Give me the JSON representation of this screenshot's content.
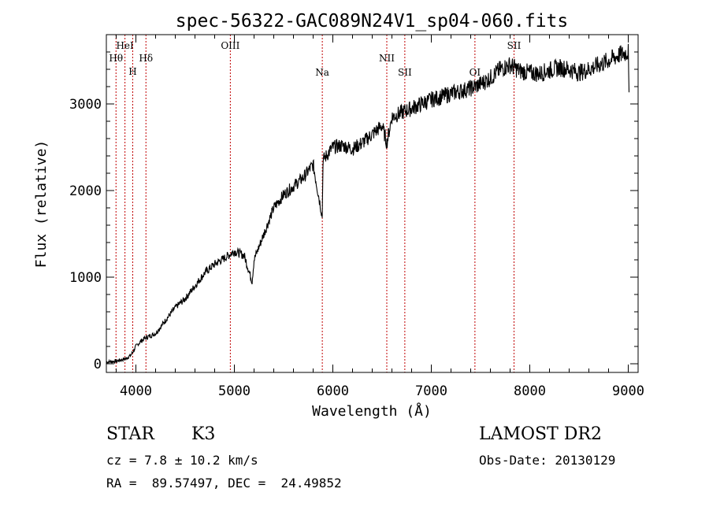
{
  "chart_data": {
    "type": "line",
    "title": "spec-56322-GAC089N24V1_sp04-060.fits",
    "xlabel": "Wavelength (Å)",
    "ylabel": "Flux (relative)",
    "xlim": [
      3700,
      9100
    ],
    "ylim": [
      -100,
      3800
    ],
    "x_ticks": [
      4000,
      5000,
      6000,
      7000,
      8000,
      9000
    ],
    "y_ticks": [
      0,
      1000,
      2000,
      3000
    ],
    "grid": false,
    "legend": "none",
    "line_color": "#000000",
    "marker_color": "#c00000",
    "spectral_lines": [
      {
        "label": "Hθ",
        "wavelength": 3798
      },
      {
        "label": "HeI",
        "wavelength": 3889
      },
      {
        "label": "H",
        "wavelength": 3968
      },
      {
        "label": "Hδ",
        "wavelength": 4102
      },
      {
        "label": "OIII",
        "wavelength": 4959
      },
      {
        "label": "Na",
        "wavelength": 5893
      },
      {
        "label": "NII",
        "wavelength": 6548
      },
      {
        "label": "SII",
        "wavelength": 6731
      },
      {
        "label": "OI",
        "wavelength": 7443
      },
      {
        "label": "SII",
        "wavelength": 7840
      }
    ],
    "spectrum_anchors": {
      "x": [
        3700,
        3800,
        3900,
        3950,
        4000,
        4050,
        4100,
        4200,
        4300,
        4400,
        4500,
        4600,
        4700,
        4800,
        4900,
        5000,
        5100,
        5180,
        5200,
        5300,
        5400,
        5500,
        5600,
        5700,
        5800,
        5893,
        5900,
        6000,
        6100,
        6200,
        6300,
        6400,
        6500,
        6548,
        6600,
        6700,
        6800,
        6900,
        7000,
        7100,
        7200,
        7300,
        7400,
        7500,
        7600,
        7700,
        7800,
        7900,
        8000,
        8100,
        8200,
        8300,
        8400,
        8500,
        8600,
        8700,
        8800,
        8900,
        9000,
        9010
      ],
      "y": [
        20,
        30,
        60,
        100,
        200,
        260,
        300,
        350,
        500,
        650,
        750,
        900,
        1050,
        1150,
        1220,
        1300,
        1250,
        950,
        1200,
        1500,
        1800,
        1950,
        2050,
        2150,
        2300,
        1700,
        2350,
        2500,
        2520,
        2480,
        2550,
        2650,
        2750,
        2550,
        2850,
        2900,
        2950,
        3000,
        3050,
        3080,
        3120,
        3150,
        3180,
        3230,
        3300,
        3400,
        3450,
        3380,
        3360,
        3350,
        3390,
        3420,
        3400,
        3360,
        3400,
        3450,
        3500,
        3560,
        3600,
        2900
      ]
    }
  },
  "info": {
    "class": "STAR",
    "subclass": "K3",
    "cz": "cz = 7.8 ± 10.2 km/s",
    "survey": "LAMOST DR2",
    "obs_date": "Obs-Date: 20130129",
    "coords": "RA =  89.57497, DEC =  24.49852"
  }
}
